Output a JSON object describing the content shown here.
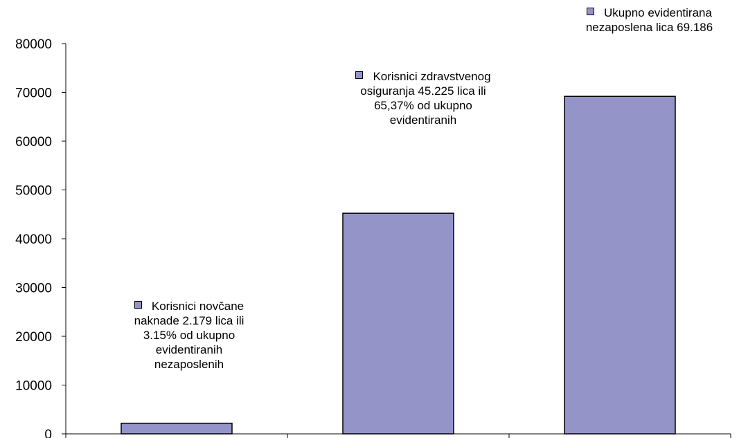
{
  "chart_data": {
    "type": "bar",
    "categories": [
      "",
      "",
      ""
    ],
    "values": [
      2179,
      45225,
      69186
    ],
    "ylim": [
      0,
      80000
    ],
    "yticks": [
      0,
      10000,
      20000,
      30000,
      40000,
      50000,
      60000,
      70000,
      80000
    ],
    "title": "",
    "xlabel": "",
    "ylabel": "",
    "grid": false,
    "bar_color": "#9494c8",
    "bar_edge_color": "#000000",
    "annotations": [
      {
        "lines": [
          "Korisnici novčane",
          "naknade 2.179 lica ili",
          "3.15% od ukupno",
          "evidentiranih",
          "nezaposlenih"
        ]
      },
      {
        "lines": [
          "Korisnici zdravstvenog",
          "osiguranja 45.225 lica ili",
          "65,37% od ukupno",
          "evidentiranih"
        ]
      },
      {
        "lines": [
          "Ukupno evidentirana",
          "nezaposlena lica 69.186"
        ]
      }
    ]
  }
}
